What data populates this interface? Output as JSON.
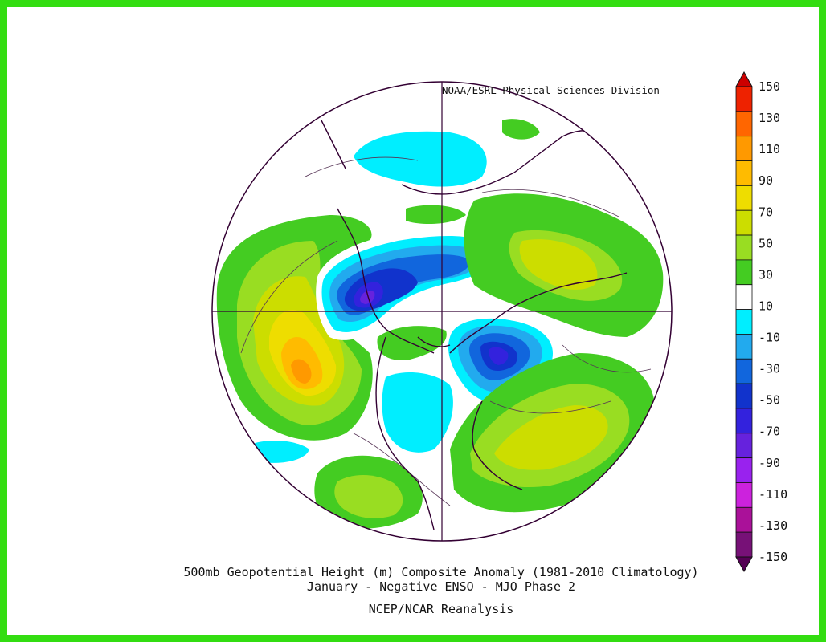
{
  "credit": "NOAA/ESRL Physical Sciences Division",
  "title": {
    "line1": "500mb Geopotential Height (m) Composite Anomaly (1981-2010 Climatology)",
    "line2": "January - Negative ENSO - MJO Phase 2",
    "line3": "NCEP/NCAR Reanalysis"
  },
  "colorbar": {
    "labels": [
      "150",
      "130",
      "110",
      "90",
      "70",
      "50",
      "30",
      "10",
      "-10",
      "-30",
      "-50",
      "-70",
      "-90",
      "-110",
      "-130",
      "-150"
    ],
    "colors": [
      "#cc0000",
      "#ee2200",
      "#ff6600",
      "#ff9900",
      "#ffbb00",
      "#eedd00",
      "#ccdd00",
      "#99dd22",
      "#44cc22",
      "#ffffff",
      "#00eeff",
      "#22aaee",
      "#1166dd",
      "#1133cc",
      "#3322dd",
      "#6622dd",
      "#9922ee",
      "#cc22dd",
      "#aa1199",
      "#771177",
      "#550055"
    ]
  },
  "colors": {
    "frame": "#33dd11",
    "coastline": "#330033"
  }
}
